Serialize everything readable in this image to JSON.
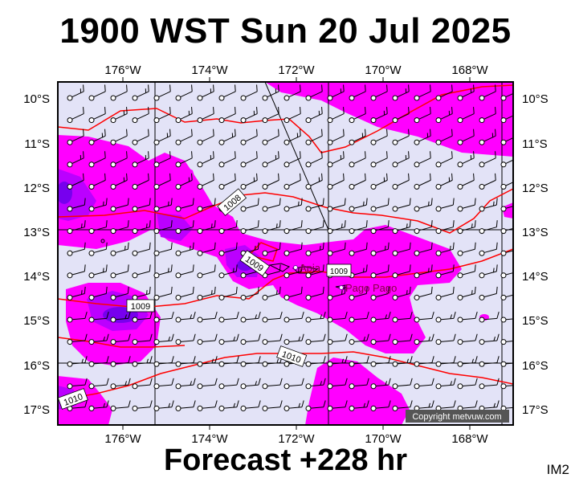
{
  "title": "1900 WST Sun 20 Jul 2025",
  "footer": "Forecast +228 hr",
  "badge": "IM2",
  "copyright": "Copyright metvuw.com",
  "axes": {
    "lon_labels": [
      "176°W",
      "174°W",
      "172°W",
      "170°W",
      "168°W"
    ],
    "lat_labels": [
      "10°S",
      "11°S",
      "12°S",
      "13°S",
      "14°S",
      "15°S",
      "16°S",
      "17°S"
    ]
  },
  "places": [
    {
      "name": "Apia"
    },
    {
      "name": "Pago Pago"
    }
  ],
  "isobars": [
    {
      "label": "1008"
    },
    {
      "label": "1009"
    },
    {
      "label": "1009"
    },
    {
      "label": "1009"
    },
    {
      "label": "1010"
    },
    {
      "label": "1010"
    }
  ],
  "colors": {
    "background": "#e3e3f7",
    "precip_light": "#ff00ff",
    "precip_medium": "#bb00ff",
    "precip_heavy": "#7700ee",
    "isobar": "#ff0000",
    "coast": "#000000"
  }
}
